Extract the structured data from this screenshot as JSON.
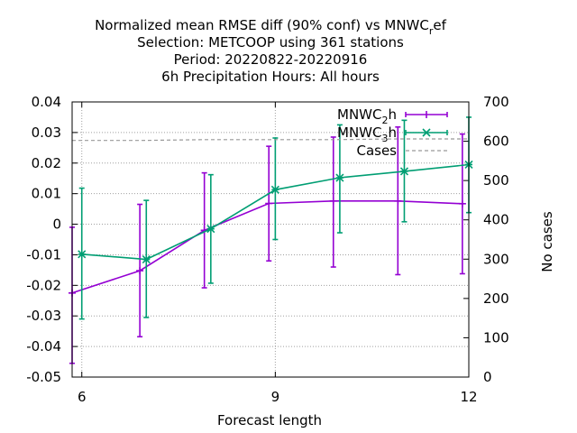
{
  "chart_data": {
    "type": "line",
    "title_lines": [
      {
        "text": "Normalized mean RMSE diff (90% conf) vs MNWC",
        "sub": "r",
        "tail": "ef"
      },
      {
        "text": "Selection: METCOOP using   361 stations",
        "sub": "",
        "tail": ""
      },
      {
        "text": "Period: 20220822-20220916",
        "sub": "",
        "tail": ""
      },
      {
        "text": "6h Precipitation   Hours:  All hours",
        "sub": "",
        "tail": ""
      }
    ],
    "xlabel": "Forecast length",
    "ylabel": "",
    "y2label": "No cases",
    "xlim": [
      5.85,
      12
    ],
    "ylim": [
      -0.05,
      0.04
    ],
    "y2lim": [
      0,
      700
    ],
    "x_ticks": [
      6,
      9,
      12
    ],
    "y_ticks": [
      "0.04",
      "0.03",
      "0.02",
      "0.01",
      "0",
      "-0.01",
      "-0.02",
      "-0.03",
      "-0.04",
      "-0.05"
    ],
    "y2_ticks": [
      "700",
      "600",
      "500",
      "400",
      "300",
      "200",
      "100",
      "0"
    ],
    "grid": true,
    "legend_position": "top-right",
    "series": [
      {
        "name": "MNWC",
        "name_sub": "2",
        "name_tail": "h",
        "color": "#9400d3",
        "marker": "plus",
        "x": [
          5.85,
          6.9,
          7.9,
          8.9,
          9.9,
          10.9,
          11.9
        ],
        "y": [
          -0.0225,
          -0.0152,
          -0.002,
          0.0068,
          0.0076,
          0.0076,
          0.0067
        ],
        "err_low": [
          -0.0455,
          -0.0368,
          -0.0208,
          -0.012,
          -0.014,
          -0.0165,
          -0.0162
        ],
        "err_high": [
          -0.001,
          0.0065,
          0.0168,
          0.0255,
          0.0285,
          0.0318,
          0.0295
        ]
      },
      {
        "name": "MNWC",
        "name_sub": "3",
        "name_tail": "h",
        "color": "#009e73",
        "marker": "cross",
        "x": [
          6.0,
          7.0,
          8.0,
          9.0,
          10.0,
          11.0,
          12.0
        ],
        "y": [
          -0.0098,
          -0.0115,
          -0.0015,
          0.0113,
          0.0152,
          0.0173,
          0.0195
        ],
        "err_low": [
          -0.031,
          -0.0305,
          -0.0193,
          -0.005,
          -0.0028,
          0.0008,
          0.0038
        ],
        "err_high": [
          0.0118,
          0.0078,
          0.0162,
          0.0282,
          0.0325,
          0.034,
          0.035
        ]
      },
      {
        "name": "Cases",
        "name_sub": "",
        "name_tail": "",
        "color": "#999999",
        "axis": "y2",
        "style": "dashed",
        "x": [
          5.85,
          6.9,
          7.9,
          8.9,
          9.9,
          10.9,
          12.0
        ],
        "y": [
          602,
          602,
          604,
          604,
          604,
          606,
          606
        ]
      }
    ]
  }
}
